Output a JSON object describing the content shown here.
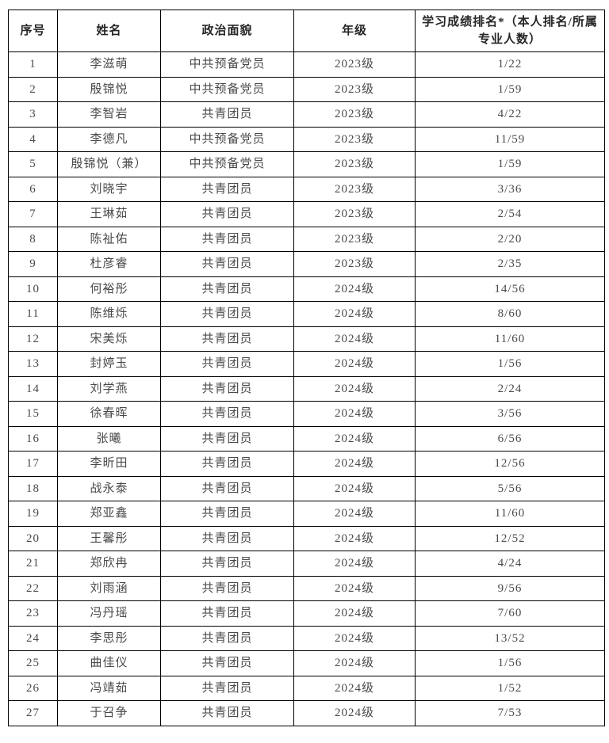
{
  "table": {
    "headers": [
      "序号",
      "姓名",
      "政治面貌",
      "年级",
      "学习成绩排名*（本人排名/所属专业人数）"
    ],
    "column_names": [
      "index",
      "name",
      "political_status",
      "grade",
      "ranking"
    ],
    "rows": [
      [
        "1",
        "李滋萌",
        "中共预备党员",
        "2023级",
        "1/22"
      ],
      [
        "2",
        "殷锦悦",
        "中共预备党员",
        "2023级",
        "1/59"
      ],
      [
        "3",
        "李智岩",
        "共青团员",
        "2023级",
        "4/22"
      ],
      [
        "4",
        "李德凡",
        "中共预备党员",
        "2023级",
        "11/59"
      ],
      [
        "5",
        "殷锦悦（兼）",
        "中共预备党员",
        "2023级",
        "1/59"
      ],
      [
        "6",
        "刘晓宇",
        "共青团员",
        "2023级",
        "3/36"
      ],
      [
        "7",
        "王琳茹",
        "共青团员",
        "2023级",
        "2/54"
      ],
      [
        "8",
        "陈祉佑",
        "共青团员",
        "2023级",
        "2/20"
      ],
      [
        "9",
        "杜彦睿",
        "共青团员",
        "2023级",
        "2/35"
      ],
      [
        "10",
        "何裕彤",
        "共青团员",
        "2024级",
        "14/56"
      ],
      [
        "11",
        "陈维烁",
        "共青团员",
        "2024级",
        "8/60"
      ],
      [
        "12",
        "宋美烁",
        "共青团员",
        "2024级",
        "11/60"
      ],
      [
        "13",
        "封婷玉",
        "共青团员",
        "2024级",
        "1/56"
      ],
      [
        "14",
        "刘学燕",
        "共青团员",
        "2024级",
        "2/24"
      ],
      [
        "15",
        "徐春晖",
        "共青团员",
        "2024级",
        "3/56"
      ],
      [
        "16",
        "张曦",
        "共青团员",
        "2024级",
        "6/56"
      ],
      [
        "17",
        "李昕田",
        "共青团员",
        "2024级",
        "12/56"
      ],
      [
        "18",
        "战永泰",
        "共青团员",
        "2024级",
        "5/56"
      ],
      [
        "19",
        "郑亚鑫",
        "共青团员",
        "2024级",
        "11/60"
      ],
      [
        "20",
        "王馨彤",
        "共青团员",
        "2024级",
        "12/52"
      ],
      [
        "21",
        "郑欣冉",
        "共青团员",
        "2024级",
        "4/24"
      ],
      [
        "22",
        "刘雨涵",
        "共青团员",
        "2024级",
        "9/56"
      ],
      [
        "23",
        "冯丹瑶",
        "共青团员",
        "2024级",
        "7/60"
      ],
      [
        "24",
        "李思彤",
        "共青团员",
        "2024级",
        "13/52"
      ],
      [
        "25",
        "曲佳仪",
        "共青团员",
        "2024级",
        "1/56"
      ],
      [
        "26",
        "冯靖茹",
        "共青团员",
        "2024级",
        "1/52"
      ],
      [
        "27",
        "于召争",
        "共青团员",
        "2024级",
        "7/53"
      ]
    ],
    "colors": {
      "border": "#000000",
      "header_text": "#262626",
      "body_text": "#4a4a4a",
      "background": "#ffffff"
    }
  }
}
